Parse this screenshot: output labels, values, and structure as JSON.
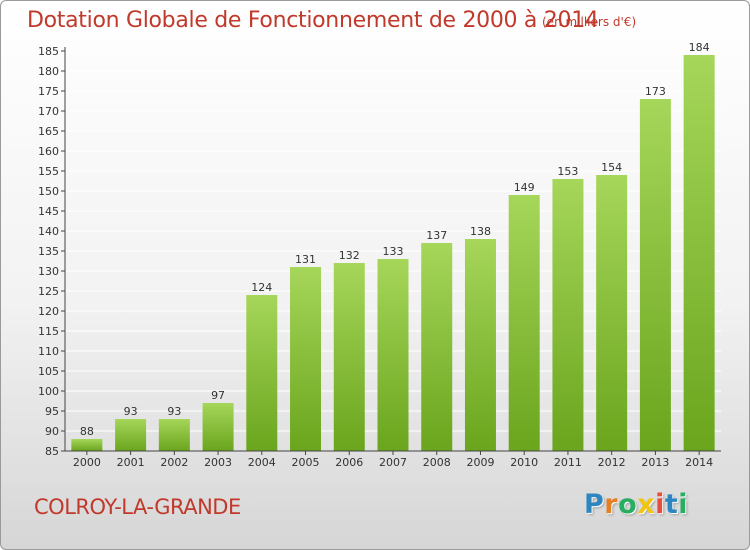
{
  "header": {
    "title": "Dotation Globale de Fonctionnement de 2000 à 2014",
    "subtitle": "(en milliers d'€)"
  },
  "footer": {
    "place": "COLROY-LA-GRANDE",
    "logo_letters": [
      "P",
      "r",
      "o",
      "x",
      "i",
      "t",
      "i"
    ]
  },
  "colors": {
    "title": "#c0392b",
    "bar_light": "#a6d65a",
    "bar_dark": "#6aa51d",
    "axis": "#444444",
    "grid": "#ffffff",
    "logo": [
      "#2e86c1",
      "#e67e22",
      "#27ae60",
      "#f1c40f",
      "#e74c3c",
      "#2e86c1",
      "#27ae60"
    ]
  },
  "chart_data": {
    "type": "bar",
    "title": "Dotation Globale de Fonctionnement de 2000 à 2014",
    "subtitle": "(en milliers d'€)",
    "categories": [
      "2000",
      "2001",
      "2002",
      "2003",
      "2004",
      "2005",
      "2006",
      "2007",
      "2008",
      "2009",
      "2010",
      "2011",
      "2012",
      "2013",
      "2014"
    ],
    "values": [
      88,
      93,
      93,
      97,
      124,
      131,
      132,
      133,
      137,
      138,
      149,
      153,
      154,
      173,
      184
    ],
    "ylim": [
      85,
      185
    ],
    "ytick_step": 5,
    "grid": true,
    "xlabel": "",
    "ylabel": ""
  }
}
